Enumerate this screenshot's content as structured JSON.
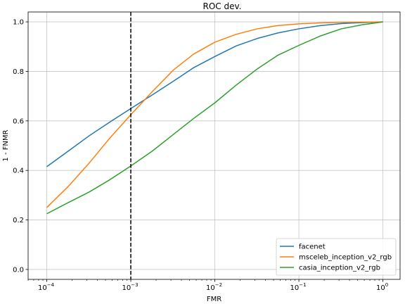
{
  "chart_data": {
    "type": "line",
    "title": "ROC dev.",
    "xlabel": "FMR",
    "ylabel": "1 - FNMR",
    "x_scale": "log",
    "xlim": [
      6e-05,
      1.6
    ],
    "ylim": [
      -0.04,
      1.04
    ],
    "x_ticks": [
      {
        "value": 0.0001,
        "base": "10",
        "exp": "−4"
      },
      {
        "value": 0.001,
        "base": "10",
        "exp": "−3"
      },
      {
        "value": 0.01,
        "base": "10",
        "exp": "−2"
      },
      {
        "value": 0.1,
        "base": "10",
        "exp": "−1"
      },
      {
        "value": 1,
        "base": "10",
        "exp": "0"
      }
    ],
    "y_ticks": [
      {
        "value": 0.0,
        "label": "0.0"
      },
      {
        "value": 0.2,
        "label": "0.2"
      },
      {
        "value": 0.4,
        "label": "0.4"
      },
      {
        "value": 0.6,
        "label": "0.6"
      },
      {
        "value": 0.8,
        "label": "0.8"
      },
      {
        "value": 1.0,
        "label": "1.0"
      }
    ],
    "grid": true,
    "legend_position": "bottom-right",
    "threshold_line": {
      "x": 0.001,
      "style": "dashed",
      "color": "#000000"
    },
    "x": [
      0.0001,
      0.00018,
      0.00032,
      0.00056,
      0.001,
      0.0018,
      0.0032,
      0.0056,
      0.01,
      0.018,
      0.032,
      0.056,
      0.1,
      0.18,
      0.32,
      0.56,
      1.0
    ],
    "series": [
      {
        "name": "facenet",
        "color": "#1f77b4",
        "values": [
          0.415,
          0.478,
          0.54,
          0.595,
          0.65,
          0.705,
          0.76,
          0.815,
          0.86,
          0.903,
          0.933,
          0.955,
          0.972,
          0.985,
          0.993,
          0.997,
          1.0
        ]
      },
      {
        "name": "msceleb_inception_v2_rgb",
        "color": "#ff7f0e",
        "values": [
          0.25,
          0.335,
          0.43,
          0.53,
          0.625,
          0.718,
          0.805,
          0.87,
          0.918,
          0.95,
          0.972,
          0.985,
          0.992,
          0.996,
          0.998,
          0.999,
          1.0
        ]
      },
      {
        "name": "casia_inception_v2_rgb",
        "color": "#2ca02c",
        "values": [
          0.225,
          0.27,
          0.313,
          0.362,
          0.418,
          0.478,
          0.545,
          0.61,
          0.673,
          0.745,
          0.81,
          0.865,
          0.905,
          0.943,
          0.972,
          0.988,
          1.0
        ]
      }
    ]
  }
}
